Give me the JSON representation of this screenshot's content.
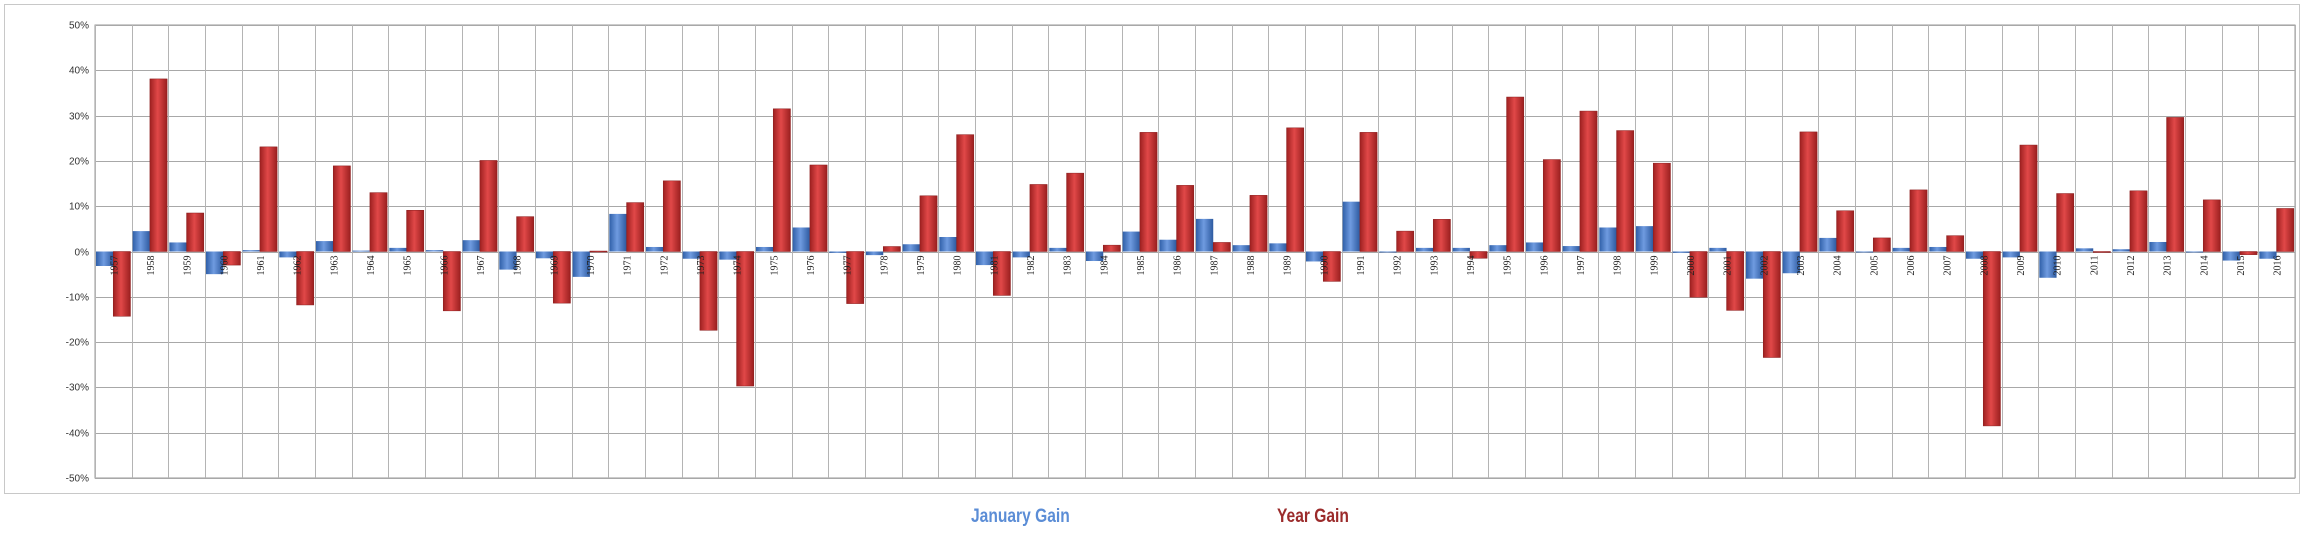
{
  "chart_data": {
    "type": "bar",
    "title": "",
    "xlabel": "",
    "ylabel": "",
    "ylim": [
      -50,
      50
    ],
    "y_tick_step": 10,
    "y_tick_format": "percent",
    "grid": true,
    "legend_position": "bottom",
    "categories": [
      "1957",
      "1958",
      "1959",
      "1960",
      "1961",
      "1962",
      "1963",
      "1964",
      "1965",
      "1966",
      "1967",
      "1968",
      "1969",
      "1970",
      "1971",
      "1972",
      "1973",
      "1974",
      "1975",
      "1976",
      "1977",
      "1978",
      "1979",
      "1980",
      "1981",
      "1982",
      "1983",
      "1984",
      "1985",
      "1986",
      "1987",
      "1988",
      "1989",
      "1990",
      "1991",
      "1992",
      "1993",
      "1994",
      "1995",
      "1996",
      "1997",
      "1998",
      "1999",
      "2000",
      "2001",
      "2002",
      "2003",
      "2004",
      "2005",
      "2006",
      "2007",
      "2008",
      "2009",
      "2010",
      "2011",
      "2012",
      "2013",
      "2014",
      "2015",
      "2016"
    ],
    "series": [
      {
        "name": "January Gain",
        "color": "#4a7fc9",
        "values": [
          -4.2,
          4.3,
          0.4,
          -7.1,
          6.3,
          -3.8,
          4.9,
          2.7,
          3.3,
          0.5,
          7.8,
          -4.4,
          -0.8,
          -7.6,
          4.0,
          1.8,
          -1.7,
          -1.0,
          12.3,
          11.8,
          -5.1,
          -6.2,
          4.0,
          5.8,
          -4.6,
          -1.8,
          3.3,
          -0.9,
          7.4,
          0.2,
          13.2,
          4.0,
          7.1,
          -6.9,
          4.2,
          -2.0,
          0.7,
          3.3,
          2.4,
          3.3,
          6.1,
          1.0,
          4.1,
          -5.1,
          3.5,
          -1.6,
          -2.7,
          1.7,
          -2.5,
          2.5,
          1.4,
          -6.1,
          -8.6,
          -3.7,
          2.3,
          4.4,
          5.0,
          -3.6,
          -3.1,
          -5.1
        ],
        "heights": [
          3.2,
          4.5,
          2.0,
          5.0,
          0.3,
          1.3,
          2.3,
          0.2,
          0.8,
          0.3,
          2.5,
          4.0,
          1.5,
          5.6,
          8.3,
          1.0,
          1.6,
          1.8,
          1.0,
          5.3,
          0.3,
          0.8,
          1.6,
          3.2,
          3.0,
          1.3,
          0.8,
          2.1,
          4.4,
          2.6,
          7.2,
          1.4,
          1.8,
          2.2,
          11.0,
          0.2,
          0.8,
          0.8,
          1.4,
          2.0,
          1.2,
          5.3,
          5.6,
          0.3,
          0.8,
          6.0,
          4.8,
          3.0,
          0.2,
          0.8,
          1.0,
          1.6,
          1.3,
          5.8,
          0.7,
          0.5,
          2.1,
          0.2,
          2.0,
          1.6
        ]
      },
      {
        "name": "Year Gain",
        "color": "#c42f2f",
        "values": [
          -14.3,
          38.1,
          8.5,
          -3.0,
          23.1,
          -11.8,
          18.9,
          13.0,
          9.1,
          -13.1,
          20.1,
          7.7,
          -11.4,
          0.1,
          10.8,
          15.6,
          -17.4,
          -29.7,
          31.5,
          19.1,
          -11.5,
          1.1,
          12.3,
          25.8,
          -9.7,
          14.8,
          17.3,
          1.4,
          26.3,
          14.6,
          2.0,
          12.4,
          27.3,
          -6.6,
          26.3,
          4.5,
          7.1,
          -1.5,
          34.1,
          20.3,
          31.0,
          26.7,
          19.5,
          -10.1,
          -13.0,
          -23.4,
          26.4,
          9.0,
          3.0,
          13.6,
          3.5,
          -38.5,
          23.5,
          12.8,
          0.0,
          13.4,
          29.6,
          11.4,
          -0.7,
          9.5
        ]
      }
    ]
  },
  "legend": {
    "january_label": "January Gain",
    "january_color": "#5b8dd6",
    "year_label": "Year Gain",
    "year_color": "#9b2b2b"
  }
}
